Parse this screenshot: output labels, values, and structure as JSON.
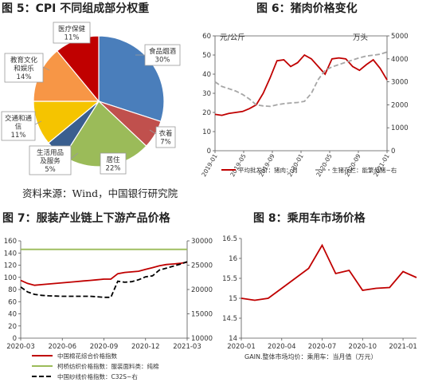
{
  "source_note": "资料来源：Wind，中国银行研究院",
  "chart_data": [
    {
      "type": "pie",
      "title": "图 5：CPI 不同组成部分权重",
      "slices": [
        {
          "label": "食品烟酒",
          "pct_label": "30%",
          "value": 30,
          "color": "#4a7ebb"
        },
        {
          "label": "衣着",
          "pct_label": "7%",
          "value": 7,
          "color": "#c0504d"
        },
        {
          "label": "居住",
          "pct_label": "22%",
          "value": 22,
          "color": "#9bbb59"
        },
        {
          "label": "生活用品及服务",
          "pct_label": "5%",
          "value": 5,
          "color": "#3a5f8f"
        },
        {
          "label": "交通和通信",
          "pct_label": "11%",
          "value": 11,
          "color": "#f5c400"
        },
        {
          "label": "教育文化和娱乐",
          "pct_label": "14%",
          "value": 14,
          "color": "#f79646"
        },
        {
          "label": "医疗保健",
          "pct_label": "11%",
          "value": 11,
          "color": "#c00000"
        }
      ],
      "callouts": [
        {
          "lines": [
            "食品烟酒",
            "30%"
          ]
        },
        {
          "lines": [
            "衣着",
            "7%"
          ]
        },
        {
          "lines": [
            "居住",
            "22%"
          ]
        },
        {
          "lines": [
            "生活用品",
            "及服务",
            "5%"
          ]
        },
        {
          "lines": [
            "交通和通",
            "信",
            "11%"
          ]
        },
        {
          "lines": [
            "教育文化",
            "和娱乐",
            "14%"
          ]
        },
        {
          "lines": [
            "医疗保健",
            "11%"
          ]
        }
      ]
    },
    {
      "type": "line",
      "title": "图 6：猪肉价格变化",
      "y_unit_left": "元/公斤",
      "y_unit_right": "万头",
      "x_ticks": [
        "2019-01",
        "2019-05",
        "2019-09",
        "2020-01",
        "2020-05",
        "2020-09",
        "2021-01"
      ],
      "ylim_left": [
        0,
        60
      ],
      "yticks_left": [
        0,
        10,
        20,
        30,
        40,
        50,
        60
      ],
      "ylim_right": [
        0,
        5000
      ],
      "yticks_right": [
        0,
        1000,
        2000,
        3000,
        4000,
        5000
      ],
      "series": [
        {
          "name": "平均批发价：猪肉：月",
          "axis": "left",
          "color": "#c00000",
          "dash": "solid",
          "x": [
            0,
            1,
            2,
            3,
            4,
            5,
            6,
            7,
            8,
            9,
            10,
            11,
            12,
            13,
            14,
            15,
            16,
            17,
            18,
            19,
            20,
            21,
            22,
            23,
            24,
            25
          ],
          "values": [
            19,
            18.5,
            19.5,
            20,
            20.5,
            22,
            24,
            30,
            38,
            47,
            47.5,
            44,
            46,
            50,
            48,
            44,
            40,
            48,
            48.5,
            48,
            44,
            42,
            45,
            47.5,
            43,
            37
          ]
        },
        {
          "name": "生猪存栏：能繁母猪~右",
          "axis": "right",
          "color": "#a6a6a6",
          "dash": "dashed",
          "x": [
            0,
            1,
            2,
            3,
            4,
            5,
            6,
            7,
            8,
            9,
            10,
            11,
            12,
            13,
            14,
            15,
            16,
            17,
            18,
            19,
            20,
            21,
            22,
            23,
            24,
            25
          ],
          "values": [
            3000,
            2800,
            2700,
            2600,
            2450,
            2250,
            2000,
            1950,
            1930,
            2000,
            2050,
            2080,
            2100,
            2150,
            2500,
            3100,
            3500,
            3650,
            3750,
            3850,
            3950,
            4050,
            4120,
            4160,
            4200,
            4300
          ]
        }
      ]
    },
    {
      "type": "line",
      "title": "图 7：服装产业链上下游产品价格",
      "x_ticks": [
        "2020-03",
        "2020-06",
        "2020-09",
        "2020-12",
        "2021-03"
      ],
      "ylim_left": [
        0,
        160
      ],
      "yticks_left": [
        0,
        20,
        40,
        60,
        80,
        100,
        120,
        140,
        160
      ],
      "ylim_right": [
        10000,
        30000
      ],
      "yticks_right": [
        10000,
        15000,
        20000,
        25000,
        30000
      ],
      "series": [
        {
          "name": "中国棉花综合价格指数",
          "axis": "left",
          "color": "#c00000",
          "dash": "solid",
          "x": [
            0,
            0.5,
            1,
            1.5,
            2,
            2.5,
            3,
            3.5,
            4,
            4.5,
            5,
            5.5,
            6,
            6.5,
            7,
            7.5,
            8,
            8.5,
            9,
            9.5,
            10,
            10.5,
            11,
            11.5,
            12
          ],
          "values": [
            95,
            90,
            87,
            88,
            89,
            90,
            91,
            92,
            93,
            94,
            95,
            96,
            97,
            97,
            106,
            108,
            109,
            110,
            113,
            116,
            119,
            121,
            122,
            123,
            125
          ]
        },
        {
          "name": "柯桥纺织价格指数：服装面料类：纯棉",
          "axis": "left",
          "color": "#9bbb59",
          "dash": "solid",
          "x": [
            0,
            12
          ],
          "values": [
            146,
            146
          ]
        },
        {
          "name": "中国纱线价格指数：C32S~右",
          "axis": "right",
          "color": "#000000",
          "dash": "dashed",
          "x": [
            0,
            0.5,
            1,
            1.5,
            2,
            2.5,
            3,
            3.5,
            4,
            4.5,
            5,
            5.5,
            6,
            6.5,
            7,
            7.5,
            8,
            8.5,
            9,
            9.5,
            10,
            10.5,
            11,
            11.5,
            12
          ],
          "values": [
            20500,
            19500,
            19000,
            18800,
            18700,
            18650,
            18600,
            18600,
            18600,
            18600,
            18600,
            18500,
            18400,
            18400,
            21700,
            21500,
            21600,
            22000,
            22600,
            22800,
            24000,
            24400,
            24800,
            25200,
            25700
          ]
        }
      ]
    },
    {
      "type": "line",
      "title": "图 8：乘用车市场价格",
      "x_ticks": [
        "2020-01",
        "2020-04",
        "2020-07",
        "2020-10",
        "2021-01"
      ],
      "ylim": [
        14,
        16.5
      ],
      "yticks": [
        "14",
        "14.5",
        "15",
        "15.5",
        "16",
        "16.5"
      ],
      "series": [
        {
          "name": "GAIN.整体市场均价：乘用车：当月值（万元）",
          "color": "#c00000",
          "dash": "solid",
          "x": [
            0,
            1,
            2,
            3,
            4,
            5,
            6,
            7,
            8,
            9,
            10,
            11,
            12,
            13
          ],
          "values": [
            15,
            14.95,
            15,
            15.25,
            15.5,
            15.75,
            16.33,
            15.62,
            15.7,
            15.2,
            15.25,
            15.27,
            15.67,
            15.52
          ]
        }
      ]
    }
  ]
}
